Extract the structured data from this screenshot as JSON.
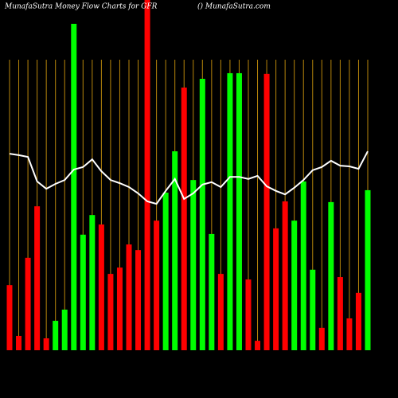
{
  "chart_data": {
    "type": "bar",
    "title": "MunafaSutra  Money Flow  Charts for GFR",
    "subtitle": "() MunafaSutra.com",
    "ylim": [
      0,
      100
    ],
    "values": [
      18.6,
      4.1,
      26.4,
      41.1,
      3.4,
      8.4,
      11.6,
      93.2,
      33,
      38.6,
      35.9,
      21.8,
      23.6,
      30.2,
      28.6,
      100,
      37,
      45,
      56.8,
      75,
      48.6,
      77.5,
      33.2,
      21.8,
      79.1,
      79.1,
      20.2,
      2.7,
      78.9,
      34.8,
      42.5,
      37,
      48.2,
      23,
      6.4,
      42.3,
      20.9,
      9.1,
      16.4,
      45.7
    ],
    "colors": [
      "#ff0000",
      "#ff0000",
      "#ff0000",
      "#ff0000",
      "#ff0000",
      "#00ff00",
      "#00ff00",
      "#00ff00",
      "#00ff00",
      "#00ff00",
      "#ff0000",
      "#ff0000",
      "#ff0000",
      "#ff0000",
      "#ff0000",
      "#ff0000",
      "#ff0000",
      "#00ff00",
      "#00ff00",
      "#ff0000",
      "#00ff00",
      "#00ff00",
      "#00ff00",
      "#ff0000",
      "#00ff00",
      "#00ff00",
      "#ff0000",
      "#ff0000",
      "#ff0000",
      "#ff0000",
      "#ff0000",
      "#00ff00",
      "#00ff00",
      "#00ff00",
      "#ff0000",
      "#00ff00",
      "#ff0000",
      "#ff0000",
      "#ff0000",
      "#00ff00"
    ],
    "line_values": [
      56.1,
      55.7,
      55.2,
      48.2,
      46.1,
      47.5,
      48.6,
      51.6,
      52.3,
      54.5,
      51.1,
      48.6,
      47.7,
      46.6,
      44.8,
      42.5,
      41.8,
      45.5,
      48.9,
      43.2,
      44.8,
      47.3,
      48,
      46.6,
      49.5,
      49.5,
      48.9,
      49.8,
      46.8,
      45.5,
      44.5,
      46.4,
      48.6,
      51.4,
      52.3,
      54.1,
      52.7,
      52.5,
      51.8,
      56.8
    ],
    "line_color": "#ffffff",
    "guide_color": "#b8860b"
  }
}
